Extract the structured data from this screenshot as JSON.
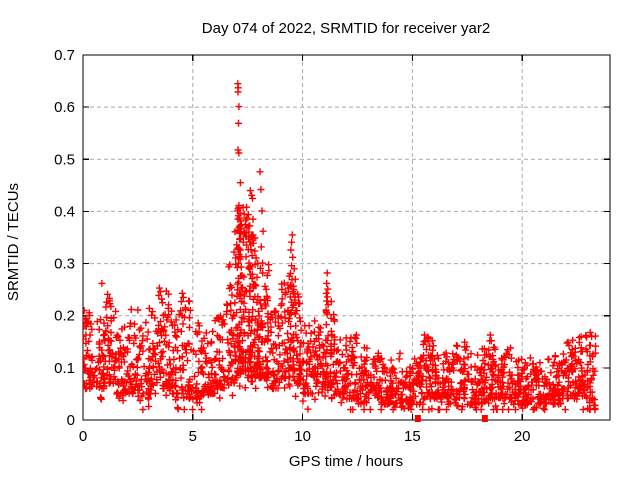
{
  "title": "Day 074 of 2022, SRMTID for receiver yar2",
  "axes": {
    "x_label": "GPS time / hours",
    "y_label": "SRMTID / TECUs"
  },
  "colors": {
    "marker": "#ff0000",
    "grid": "#a9a9a9",
    "border": "#000000",
    "background": "#ffffff",
    "text": "#000000"
  },
  "chart_data": {
    "type": "scatter",
    "title": "Day 074 of 2022, SRMTID for receiver yar2",
    "xlabel": "GPS time / hours",
    "ylabel": "SRMTID / TECUs",
    "xlim": [
      0,
      24
    ],
    "ylim": [
      0,
      0.7
    ],
    "x_tick_values": [
      0,
      5,
      10,
      15,
      20
    ],
    "x_tick_labels": [
      "0",
      "5",
      "10",
      "15",
      "20"
    ],
    "y_tick_values": [
      0,
      0.1,
      0.2,
      0.3,
      0.4,
      0.5,
      0.6,
      0.7
    ],
    "y_tick_labels": [
      "0",
      "0.1",
      "0.2",
      "0.3",
      "0.4",
      "0.5",
      "0.6",
      "0.7"
    ],
    "grid": true,
    "grid_style": "dashed",
    "legend": "none",
    "marker": "plus",
    "marker_color": "#ff0000",
    "peak": {
      "x": 7.05,
      "y": 0.645
    },
    "zero_flag_points": [
      [
        15.25,
        0
      ],
      [
        18.3,
        0
      ]
    ],
    "outlier_points": [
      [
        0.0,
        0.16
      ],
      [
        0.0,
        0.12
      ],
      [
        0.05,
        0.21
      ],
      [
        0.1,
        0.195
      ],
      [
        0.86,
        0.262
      ],
      [
        1.12,
        0.241
      ],
      [
        1.2,
        0.233
      ],
      [
        1.08,
        0.226
      ],
      [
        2.2,
        0.212
      ],
      [
        2.5,
        0.211
      ],
      [
        3.48,
        0.253
      ],
      [
        3.53,
        0.246
      ],
      [
        3.45,
        0.239
      ],
      [
        3.58,
        0.232
      ],
      [
        3.62,
        0.225
      ],
      [
        3.9,
        0.221
      ],
      [
        4.52,
        0.243
      ],
      [
        4.57,
        0.235
      ],
      [
        4.48,
        0.227
      ],
      [
        6.55,
        0.222
      ],
      [
        6.92,
        0.361
      ],
      [
        6.88,
        0.322
      ],
      [
        6.95,
        0.311
      ],
      [
        7.05,
        0.645
      ],
      [
        7.07,
        0.637
      ],
      [
        7.06,
        0.629
      ],
      [
        7.1,
        0.601
      ],
      [
        7.08,
        0.569
      ],
      [
        7.06,
        0.518
      ],
      [
        7.1,
        0.512
      ],
      [
        7.17,
        0.455
      ],
      [
        7.06,
        0.385
      ],
      [
        7.0,
        0.336
      ],
      [
        7.06,
        0.33
      ],
      [
        7.38,
        0.359
      ],
      [
        7.53,
        0.394
      ],
      [
        7.62,
        0.44
      ],
      [
        7.68,
        0.431
      ],
      [
        7.72,
        0.425
      ],
      [
        7.74,
        0.385
      ],
      [
        7.74,
        0.355
      ],
      [
        7.74,
        0.345
      ],
      [
        7.83,
        0.324
      ],
      [
        8.06,
        0.476
      ],
      [
        8.1,
        0.442
      ],
      [
        8.15,
        0.401
      ],
      [
        8.2,
        0.362
      ],
      [
        8.12,
        0.332
      ],
      [
        8.18,
        0.301
      ],
      [
        8.08,
        0.291
      ],
      [
        9.53,
        0.355
      ],
      [
        9.5,
        0.341
      ],
      [
        9.47,
        0.326
      ],
      [
        9.55,
        0.312
      ],
      [
        9.5,
        0.296
      ],
      [
        9.45,
        0.281
      ],
      [
        9.52,
        0.269
      ],
      [
        9.48,
        0.256
      ],
      [
        9.56,
        0.246
      ],
      [
        9.44,
        0.236
      ],
      [
        9.5,
        0.226
      ],
      [
        9.53,
        0.216
      ],
      [
        9.46,
        0.206
      ],
      [
        9.62,
        0.29
      ],
      [
        9.67,
        0.27
      ],
      [
        9.6,
        0.25
      ],
      [
        9.65,
        0.23
      ],
      [
        9.7,
        0.21
      ],
      [
        10.55,
        0.19
      ],
      [
        11.12,
        0.282
      ],
      [
        11.1,
        0.262
      ],
      [
        11.15,
        0.251
      ],
      [
        11.08,
        0.243
      ],
      [
        11.13,
        0.236
      ],
      [
        11.1,
        0.228
      ],
      [
        11.16,
        0.221
      ],
      [
        11.07,
        0.211
      ],
      [
        11.12,
        0.203
      ],
      [
        11.3,
        0.195
      ],
      [
        12.45,
        0.163
      ],
      [
        15.55,
        0.163
      ],
      [
        15.6,
        0.152
      ],
      [
        15.5,
        0.145
      ],
      [
        18.55,
        0.163
      ],
      [
        18.6,
        0.152
      ],
      [
        22.3,
        0.153
      ],
      [
        22.6,
        0.158
      ],
      [
        22.9,
        0.162
      ],
      [
        23.1,
        0.168
      ]
    ],
    "density_profile": [
      {
        "x0": 0.0,
        "x1": 0.5,
        "n": 45,
        "lo": 0.06,
        "hi": 0.21
      },
      {
        "x0": 0.5,
        "x1": 1.0,
        "n": 45,
        "lo": 0.06,
        "hi": 0.2
      },
      {
        "x0": 1.0,
        "x1": 1.5,
        "n": 45,
        "lo": 0.07,
        "hi": 0.23
      },
      {
        "x0": 1.5,
        "x1": 2.0,
        "n": 42,
        "lo": 0.05,
        "hi": 0.18
      },
      {
        "x0": 2.0,
        "x1": 2.5,
        "n": 42,
        "lo": 0.05,
        "hi": 0.2
      },
      {
        "x0": 2.5,
        "x1": 3.0,
        "n": 40,
        "lo": 0.04,
        "hi": 0.19
      },
      {
        "x0": 3.0,
        "x1": 3.5,
        "n": 45,
        "lo": 0.05,
        "hi": 0.22
      },
      {
        "x0": 3.5,
        "x1": 4.0,
        "n": 50,
        "lo": 0.06,
        "hi": 0.25
      },
      {
        "x0": 4.0,
        "x1": 4.5,
        "n": 45,
        "lo": 0.05,
        "hi": 0.21
      },
      {
        "x0": 4.5,
        "x1": 5.0,
        "n": 45,
        "lo": 0.04,
        "hi": 0.23
      },
      {
        "x0": 5.0,
        "x1": 5.5,
        "n": 42,
        "lo": 0.04,
        "hi": 0.19
      },
      {
        "x0": 5.5,
        "x1": 6.0,
        "n": 40,
        "lo": 0.05,
        "hi": 0.17
      },
      {
        "x0": 6.0,
        "x1": 6.5,
        "n": 45,
        "lo": 0.06,
        "hi": 0.21
      },
      {
        "x0": 6.5,
        "x1": 7.0,
        "n": 55,
        "lo": 0.07,
        "hi": 0.3
      },
      {
        "x0": 7.0,
        "x1": 7.5,
        "n": 110,
        "lo": 0.09,
        "hi": 0.42,
        "cols": [
          7.05,
          7.12,
          7.2,
          7.3,
          7.42
        ]
      },
      {
        "x0": 7.5,
        "x1": 8.0,
        "n": 100,
        "lo": 0.08,
        "hi": 0.38,
        "cols": [
          7.55,
          7.63,
          7.72,
          7.85,
          7.95
        ]
      },
      {
        "x0": 8.0,
        "x1": 8.5,
        "n": 70,
        "lo": 0.08,
        "hi": 0.3,
        "cols": [
          8.05,
          8.15,
          8.3,
          8.42
        ]
      },
      {
        "x0": 8.5,
        "x1": 9.0,
        "n": 45,
        "lo": 0.06,
        "hi": 0.21
      },
      {
        "x0": 9.0,
        "x1": 9.5,
        "n": 60,
        "lo": 0.08,
        "hi": 0.28,
        "cols": [
          9.05,
          9.2,
          9.35,
          9.45
        ]
      },
      {
        "x0": 9.5,
        "x1": 10.0,
        "n": 55,
        "lo": 0.07,
        "hi": 0.26
      },
      {
        "x0": 10.0,
        "x1": 10.5,
        "n": 45,
        "lo": 0.05,
        "hi": 0.19
      },
      {
        "x0": 10.5,
        "x1": 11.0,
        "n": 45,
        "lo": 0.05,
        "hi": 0.18
      },
      {
        "x0": 11.0,
        "x1": 11.5,
        "n": 55,
        "lo": 0.06,
        "hi": 0.24,
        "cols": [
          11.05,
          11.12,
          11.3,
          11.42
        ]
      },
      {
        "x0": 11.5,
        "x1": 12.0,
        "n": 42,
        "lo": 0.05,
        "hi": 0.16
      },
      {
        "x0": 12.0,
        "x1": 12.5,
        "n": 42,
        "lo": 0.04,
        "hi": 0.16
      },
      {
        "x0": 12.5,
        "x1": 13.0,
        "n": 40,
        "lo": 0.03,
        "hi": 0.14
      },
      {
        "x0": 13.0,
        "x1": 13.5,
        "n": 40,
        "lo": 0.04,
        "hi": 0.13
      },
      {
        "x0": 13.5,
        "x1": 14.0,
        "n": 40,
        "lo": 0.03,
        "hi": 0.12
      },
      {
        "x0": 14.0,
        "x1": 14.5,
        "n": 40,
        "lo": 0.03,
        "hi": 0.13
      },
      {
        "x0": 14.5,
        "x1": 15.0,
        "n": 38,
        "lo": 0.02,
        "hi": 0.11
      },
      {
        "x0": 15.0,
        "x1": 15.5,
        "n": 40,
        "lo": 0.03,
        "hi": 0.12
      },
      {
        "x0": 15.5,
        "x1": 16.0,
        "n": 45,
        "lo": 0.04,
        "hi": 0.16
      },
      {
        "x0": 16.0,
        "x1": 16.5,
        "n": 40,
        "lo": 0.04,
        "hi": 0.13
      },
      {
        "x0": 16.5,
        "x1": 17.0,
        "n": 40,
        "lo": 0.03,
        "hi": 0.14
      },
      {
        "x0": 17.0,
        "x1": 17.5,
        "n": 42,
        "lo": 0.04,
        "hi": 0.15
      },
      {
        "x0": 17.5,
        "x1": 18.0,
        "n": 40,
        "lo": 0.03,
        "hi": 0.13
      },
      {
        "x0": 18.0,
        "x1": 18.5,
        "n": 42,
        "lo": 0.03,
        "hi": 0.14
      },
      {
        "x0": 18.5,
        "x1": 19.0,
        "n": 45,
        "lo": 0.04,
        "hi": 0.16
      },
      {
        "x0": 19.0,
        "x1": 19.5,
        "n": 42,
        "lo": 0.04,
        "hi": 0.14
      },
      {
        "x0": 19.5,
        "x1": 20.0,
        "n": 40,
        "lo": 0.03,
        "hi": 0.12
      },
      {
        "x0": 20.0,
        "x1": 20.5,
        "n": 40,
        "lo": 0.03,
        "hi": 0.12
      },
      {
        "x0": 20.5,
        "x1": 21.0,
        "n": 38,
        "lo": 0.02,
        "hi": 0.11
      },
      {
        "x0": 21.0,
        "x1": 21.5,
        "n": 40,
        "lo": 0.03,
        "hi": 0.12
      },
      {
        "x0": 21.5,
        "x1": 22.0,
        "n": 40,
        "lo": 0.03,
        "hi": 0.13
      },
      {
        "x0": 22.0,
        "x1": 22.5,
        "n": 45,
        "lo": 0.04,
        "hi": 0.15
      },
      {
        "x0": 22.5,
        "x1": 23.0,
        "n": 45,
        "lo": 0.04,
        "hi": 0.16
      },
      {
        "x0": 23.0,
        "x1": 23.35,
        "n": 30,
        "lo": 0.02,
        "hi": 0.17
      }
    ]
  }
}
